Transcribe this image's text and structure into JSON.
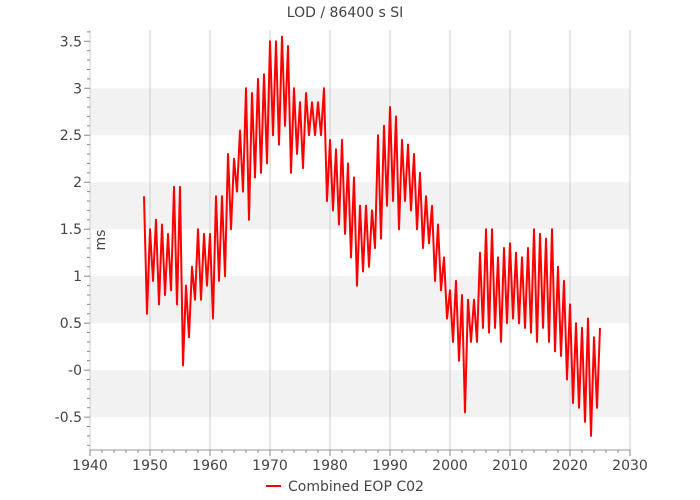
{
  "chart_data": {
    "type": "line",
    "title": "LOD / 86400 s SI",
    "xlabel": "",
    "ylabel": "ms",
    "xlim": [
      1940,
      2030
    ],
    "ylim": [
      -0.85,
      3.62
    ],
    "xticks": [
      1940,
      1950,
      1960,
      1970,
      1980,
      1990,
      2000,
      2010,
      2020,
      2030
    ],
    "xtick_labels": [
      "1940",
      "1950",
      "1960",
      "1970",
      "1980",
      "1990",
      "2000",
      "2010",
      "2020",
      "2030"
    ],
    "yticks": [
      -0.5,
      0,
      0.5,
      1,
      1.5,
      2,
      2.5,
      3,
      3.5
    ],
    "ytick_labels": [
      "-0.5",
      "-0",
      "0.5",
      "1",
      "1.5",
      "2",
      "2.5",
      "3",
      "3.5"
    ],
    "grid": true,
    "background_bands": true,
    "legend_position": "bottom-center",
    "series": [
      {
        "name": "Combined EOP C02",
        "color": "#ff0000",
        "x": [
          1949.0,
          1949.5,
          1950.0,
          1950.5,
          1951.0,
          1951.5,
          1952.0,
          1952.5,
          1953.0,
          1953.5,
          1954.0,
          1954.5,
          1955.0,
          1955.5,
          1956.0,
          1956.5,
          1957.0,
          1957.5,
          1958.0,
          1958.5,
          1959.0,
          1959.5,
          1960.0,
          1960.5,
          1961.0,
          1961.5,
          1962.0,
          1962.5,
          1963.0,
          1963.5,
          1964.0,
          1964.5,
          1965.0,
          1965.5,
          1966.0,
          1966.5,
          1967.0,
          1967.5,
          1968.0,
          1968.5,
          1969.0,
          1969.5,
          1970.0,
          1970.5,
          1971.0,
          1971.5,
          1972.0,
          1972.5,
          1973.0,
          1973.5,
          1974.0,
          1974.5,
          1975.0,
          1975.5,
          1976.0,
          1976.5,
          1977.0,
          1977.5,
          1978.0,
          1978.5,
          1979.0,
          1979.5,
          1980.0,
          1980.5,
          1981.0,
          1981.5,
          1982.0,
          1982.5,
          1983.0,
          1983.5,
          1984.0,
          1984.5,
          1985.0,
          1985.5,
          1986.0,
          1986.5,
          1987.0,
          1987.5,
          1988.0,
          1988.5,
          1989.0,
          1989.5,
          1990.0,
          1990.5,
          1991.0,
          1991.5,
          1992.0,
          1992.5,
          1993.0,
          1993.5,
          1994.0,
          1994.5,
          1995.0,
          1995.5,
          1996.0,
          1996.5,
          1997.0,
          1997.5,
          1998.0,
          1998.5,
          1999.0,
          1999.5,
          2000.0,
          2000.5,
          2001.0,
          2001.5,
          2002.0,
          2002.5,
          2003.0,
          2003.5,
          2004.0,
          2004.5,
          2005.0,
          2005.5,
          2006.0,
          2006.5,
          2007.0,
          2007.5,
          2008.0,
          2008.5,
          2009.0,
          2009.5,
          2010.0,
          2010.5,
          2011.0,
          2011.5,
          2012.0,
          2012.5,
          2013.0,
          2013.5,
          2014.0,
          2014.5,
          2015.0,
          2015.5,
          2016.0,
          2016.5,
          2017.0,
          2017.5,
          2018.0,
          2018.5,
          2019.0,
          2019.5,
          2020.0,
          2020.5,
          2021.0,
          2021.5,
          2022.0,
          2022.5,
          2023.0,
          2023.5,
          2024.0,
          2024.5,
          2025.0
        ],
        "y": [
          1.85,
          0.6,
          1.5,
          0.95,
          1.6,
          0.7,
          1.55,
          0.8,
          1.45,
          0.85,
          1.95,
          0.7,
          1.95,
          0.05,
          0.9,
          0.35,
          1.1,
          0.75,
          1.5,
          0.75,
          1.45,
          0.9,
          1.45,
          0.55,
          1.85,
          0.95,
          1.85,
          1.0,
          2.3,
          1.5,
          2.25,
          1.9,
          2.55,
          1.9,
          3.0,
          1.6,
          2.95,
          2.05,
          3.1,
          2.1,
          3.15,
          2.2,
          3.5,
          2.5,
          3.5,
          2.4,
          3.55,
          2.6,
          3.45,
          2.1,
          3.0,
          2.3,
          2.85,
          2.15,
          2.95,
          2.5,
          2.85,
          2.5,
          2.85,
          2.5,
          3.0,
          1.8,
          2.45,
          1.7,
          2.35,
          1.55,
          2.45,
          1.45,
          2.2,
          1.2,
          2.05,
          0.9,
          1.75,
          1.05,
          1.75,
          1.1,
          1.7,
          1.3,
          2.5,
          1.4,
          2.6,
          1.75,
          2.8,
          1.8,
          2.7,
          1.5,
          2.45,
          1.8,
          2.4,
          1.7,
          2.3,
          1.5,
          2.1,
          1.3,
          1.85,
          1.35,
          1.75,
          0.95,
          1.55,
          0.85,
          1.2,
          0.55,
          0.85,
          0.3,
          0.95,
          0.1,
          0.8,
          -0.45,
          0.75,
          0.3,
          0.75,
          0.3,
          1.25,
          0.45,
          1.5,
          0.4,
          1.5,
          0.45,
          1.2,
          0.3,
          1.3,
          0.5,
          1.35,
          0.55,
          1.25,
          0.5,
          1.2,
          0.45,
          1.3,
          0.4,
          1.5,
          0.3,
          1.45,
          0.45,
          1.4,
          0.3,
          1.5,
          0.2,
          1.1,
          0.15,
          0.95,
          -0.1,
          0.7,
          -0.35,
          0.5,
          -0.4,
          0.45,
          -0.55,
          0.55,
          -0.7,
          0.35,
          -0.4,
          0.45
        ]
      }
    ]
  }
}
